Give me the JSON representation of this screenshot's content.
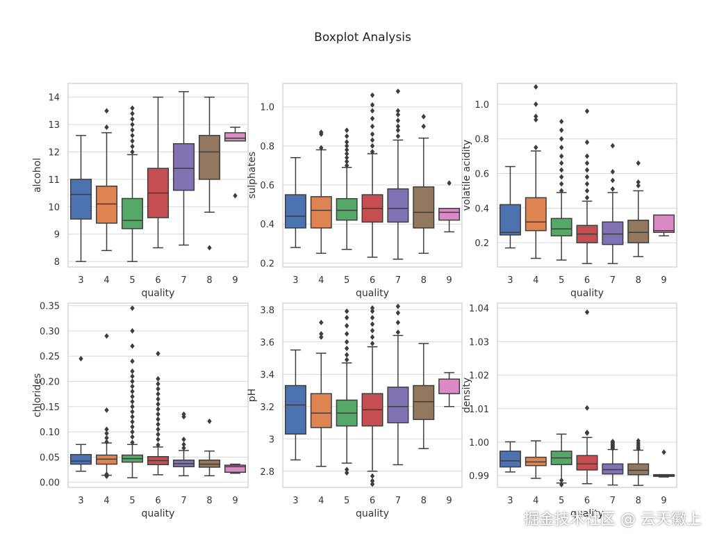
{
  "figure": {
    "title": "Boxplot Analysis"
  },
  "watermark": "掘金技术社区 @ 云天徽上",
  "colors": {
    "3": "#4c72b0",
    "4": "#dd8452",
    "5": "#55a868",
    "6": "#c44e52",
    "7": "#8172b3",
    "8": "#937860",
    "9": "#da8bc3",
    "line": "#3d3d3d",
    "grid": "#d9d9d9",
    "frame": "#cccccc"
  },
  "chart_data": [
    {
      "type": "box",
      "xlabel": "quality",
      "ylabel": "alcohol",
      "categories": [
        "3",
        "4",
        "5",
        "6",
        "7",
        "8",
        "9"
      ],
      "ylim": [
        7.8,
        14.5
      ],
      "yticks": [
        8,
        9,
        10,
        11,
        12,
        13,
        14
      ],
      "grid": true,
      "boxes": [
        {
          "q1": 9.55,
          "median": 10.45,
          "q3": 11.0,
          "whislo": 8.0,
          "whishi": 12.6,
          "fliers": []
        },
        {
          "q1": 9.4,
          "median": 10.1,
          "q3": 10.75,
          "whislo": 8.4,
          "whishi": 12.7,
          "fliers": [
            12.9,
            13.5
          ]
        },
        {
          "q1": 9.2,
          "median": 9.5,
          "q3": 10.3,
          "whislo": 8.0,
          "whishi": 11.9,
          "fliers": [
            12.0,
            12.2,
            12.4,
            12.6,
            12.8,
            13.0,
            13.2,
            13.4,
            13.6
          ]
        },
        {
          "q1": 9.6,
          "median": 10.5,
          "q3": 11.4,
          "whislo": 8.5,
          "whishi": 14.0,
          "fliers": []
        },
        {
          "q1": 10.6,
          "median": 11.4,
          "q3": 12.3,
          "whislo": 8.6,
          "whishi": 14.2,
          "fliers": []
        },
        {
          "q1": 11.0,
          "median": 12.0,
          "q3": 12.6,
          "whislo": 9.8,
          "whishi": 14.0,
          "fliers": [
            8.5
          ]
        },
        {
          "q1": 12.4,
          "median": 12.5,
          "q3": 12.7,
          "whislo": 12.4,
          "whishi": 12.9,
          "fliers": [
            10.4
          ]
        }
      ]
    },
    {
      "type": "box",
      "xlabel": "quality",
      "ylabel": "sulphates",
      "categories": [
        "3",
        "4",
        "5",
        "6",
        "7",
        "8",
        "9"
      ],
      "ylim": [
        0.18,
        1.12
      ],
      "yticks": [
        0.2,
        0.4,
        0.6,
        0.8,
        1.0
      ],
      "grid": true,
      "boxes": [
        {
          "q1": 0.38,
          "median": 0.44,
          "q3": 0.55,
          "whislo": 0.28,
          "whishi": 0.74,
          "fliers": []
        },
        {
          "q1": 0.38,
          "median": 0.47,
          "q3": 0.54,
          "whislo": 0.25,
          "whishi": 0.78,
          "fliers": [
            0.79,
            0.86,
            0.87
          ]
        },
        {
          "q1": 0.42,
          "median": 0.47,
          "q3": 0.53,
          "whislo": 0.27,
          "whishi": 0.69,
          "fliers": [
            0.7,
            0.72,
            0.74,
            0.76,
            0.78,
            0.8,
            0.82,
            0.85,
            0.88
          ]
        },
        {
          "q1": 0.41,
          "median": 0.48,
          "q3": 0.55,
          "whislo": 0.23,
          "whishi": 0.76,
          "fliers": [
            0.77,
            0.8,
            0.83,
            0.86,
            0.9,
            0.94,
            0.98,
            1.01,
            1.06
          ]
        },
        {
          "q1": 0.41,
          "median": 0.48,
          "q3": 0.58,
          "whislo": 0.22,
          "whishi": 0.83,
          "fliers": [
            0.85,
            0.88,
            0.9,
            0.93,
            0.96,
            0.98,
            1.08
          ]
        },
        {
          "q1": 0.38,
          "median": 0.46,
          "q3": 0.59,
          "whislo": 0.25,
          "whishi": 0.84,
          "fliers": [
            0.9,
            0.95
          ]
        },
        {
          "q1": 0.42,
          "median": 0.46,
          "q3": 0.48,
          "whislo": 0.36,
          "whishi": 0.48,
          "fliers": [
            0.61
          ]
        }
      ]
    },
    {
      "type": "box",
      "xlabel": "quality",
      "ylabel": "volatile acidity",
      "categories": [
        "3",
        "4",
        "5",
        "6",
        "7",
        "8",
        "9"
      ],
      "ylim": [
        0.06,
        1.12
      ],
      "yticks": [
        0.2,
        0.4,
        0.6,
        0.8,
        1.0
      ],
      "grid": true,
      "boxes": [
        {
          "q1": 0.245,
          "median": 0.26,
          "q3": 0.42,
          "whislo": 0.17,
          "whishi": 0.64,
          "fliers": []
        },
        {
          "q1": 0.27,
          "median": 0.32,
          "q3": 0.46,
          "whislo": 0.11,
          "whishi": 0.73,
          "fliers": [
            0.75,
            0.91,
            0.93,
            1.0,
            1.1
          ]
        },
        {
          "q1": 0.24,
          "median": 0.28,
          "q3": 0.34,
          "whislo": 0.1,
          "whishi": 0.49,
          "fliers": [
            0.5,
            0.54,
            0.58,
            0.62,
            0.66,
            0.7,
            0.75,
            0.8,
            0.85,
            0.9
          ]
        },
        {
          "q1": 0.2,
          "median": 0.25,
          "q3": 0.3,
          "whislo": 0.08,
          "whishi": 0.44,
          "fliers": [
            0.46,
            0.5,
            0.54,
            0.58,
            0.62,
            0.66,
            0.7,
            0.78,
            0.96
          ]
        },
        {
          "q1": 0.19,
          "median": 0.25,
          "q3": 0.32,
          "whislo": 0.08,
          "whishi": 0.49,
          "fliers": [
            0.51,
            0.56,
            0.61,
            0.76
          ]
        },
        {
          "q1": 0.2,
          "median": 0.26,
          "q3": 0.33,
          "whislo": 0.12,
          "whishi": 0.5,
          "fliers": [
            0.53,
            0.55,
            0.66
          ]
        },
        {
          "q1": 0.26,
          "median": 0.27,
          "q3": 0.36,
          "whislo": 0.24,
          "whishi": 0.36,
          "fliers": []
        }
      ]
    },
    {
      "type": "box",
      "xlabel": "quality",
      "ylabel": "chlorides",
      "categories": [
        "3",
        "4",
        "5",
        "6",
        "7",
        "8",
        "9"
      ],
      "ylim": [
        -0.01,
        0.355
      ],
      "yticks": [
        0.0,
        0.05,
        0.1,
        0.15,
        0.2,
        0.25,
        0.3,
        0.35
      ],
      "grid": true,
      "boxes": [
        {
          "q1": 0.036,
          "median": 0.042,
          "q3": 0.055,
          "whislo": 0.022,
          "whishi": 0.075,
          "fliers": [
            0.245
          ]
        },
        {
          "q1": 0.036,
          "median": 0.046,
          "q3": 0.054,
          "whislo": 0.014,
          "whishi": 0.078,
          "fliers": [
            0.012,
            0.016,
            0.08,
            0.088,
            0.097,
            0.105,
            0.143,
            0.29
          ]
        },
        {
          "q1": 0.04,
          "median": 0.047,
          "q3": 0.054,
          "whislo": 0.009,
          "whishi": 0.075,
          "fliers": [
            0.079,
            0.09,
            0.1,
            0.11,
            0.12,
            0.13,
            0.14,
            0.15,
            0.16,
            0.17,
            0.18,
            0.19,
            0.2,
            0.21,
            0.22,
            0.24,
            0.27,
            0.3,
            0.345
          ]
        },
        {
          "q1": 0.035,
          "median": 0.043,
          "q3": 0.051,
          "whislo": 0.015,
          "whishi": 0.07,
          "fliers": [
            0.074,
            0.085,
            0.095,
            0.105,
            0.115,
            0.125,
            0.135,
            0.145,
            0.155,
            0.165,
            0.175,
            0.185,
            0.195,
            0.205,
            0.255
          ]
        },
        {
          "q1": 0.031,
          "median": 0.037,
          "q3": 0.044,
          "whislo": 0.013,
          "whishi": 0.063,
          "fliers": [
            0.068,
            0.075,
            0.085,
            0.13,
            0.135
          ]
        },
        {
          "q1": 0.03,
          "median": 0.036,
          "q3": 0.044,
          "whislo": 0.013,
          "whishi": 0.062,
          "fliers": [
            0.121
          ]
        },
        {
          "q1": 0.02,
          "median": 0.031,
          "q3": 0.034,
          "whislo": 0.018,
          "whishi": 0.036,
          "fliers": []
        }
      ]
    },
    {
      "type": "box",
      "xlabel": "quality",
      "ylabel": "pH",
      "categories": [
        "3",
        "4",
        "5",
        "6",
        "7",
        "8",
        "9"
      ],
      "ylim": [
        2.7,
        3.84
      ],
      "yticks": [
        2.8,
        3.0,
        3.2,
        3.4,
        3.6,
        3.8
      ],
      "grid": true,
      "boxes": [
        {
          "q1": 3.03,
          "median": 3.21,
          "q3": 3.33,
          "whislo": 2.87,
          "whishi": 3.55,
          "fliers": []
        },
        {
          "q1": 3.07,
          "median": 3.16,
          "q3": 3.28,
          "whislo": 2.83,
          "whishi": 3.53,
          "fliers": [
            3.63,
            3.65,
            3.72
          ]
        },
        {
          "q1": 3.08,
          "median": 3.16,
          "q3": 3.24,
          "whislo": 2.85,
          "whishi": 3.47,
          "fliers": [
            2.79,
            2.81,
            3.49,
            3.52,
            3.56,
            3.6,
            3.65,
            3.7,
            3.75,
            3.79
          ]
        },
        {
          "q1": 3.08,
          "median": 3.18,
          "q3": 3.28,
          "whislo": 2.8,
          "whishi": 3.57,
          "fliers": [
            2.72,
            2.74,
            2.77,
            3.59,
            3.63,
            3.67,
            3.71,
            3.75,
            3.79,
            3.81
          ]
        },
        {
          "q1": 3.1,
          "median": 3.2,
          "q3": 3.32,
          "whislo": 2.84,
          "whishi": 3.64,
          "fliers": [
            3.66,
            3.72,
            3.78,
            3.82
          ]
        },
        {
          "q1": 3.12,
          "median": 3.23,
          "q3": 3.33,
          "whislo": 2.94,
          "whishi": 3.59,
          "fliers": []
        },
        {
          "q1": 3.28,
          "median": 3.37,
          "q3": 3.37,
          "whislo": 3.2,
          "whishi": 3.41,
          "fliers": []
        }
      ]
    },
    {
      "type": "box",
      "xlabel": "quality",
      "ylabel": "density",
      "categories": [
        "3",
        "4",
        "5",
        "6",
        "7",
        "8",
        "9"
      ],
      "ylim": [
        0.9865,
        1.0415
      ],
      "yticks": [
        0.99,
        1.0,
        1.01,
        1.02,
        1.03,
        1.04
      ],
      "grid": true,
      "boxes": [
        {
          "q1": 0.9926,
          "median": 0.9944,
          "q3": 0.9973,
          "whislo": 0.9911,
          "whishi": 1.0001,
          "fliers": []
        },
        {
          "q1": 0.993,
          "median": 0.9941,
          "q3": 0.9955,
          "whislo": 0.9892,
          "whishi": 1.0004,
          "fliers": []
        },
        {
          "q1": 0.9933,
          "median": 0.9953,
          "q3": 0.9973,
          "whislo": 0.9878,
          "whishi": 1.0024,
          "fliers": [
            0.9873,
            0.9886
          ]
        },
        {
          "q1": 0.9917,
          "median": 0.9935,
          "q3": 0.996,
          "whislo": 0.9876,
          "whishi": 1.0014,
          "fliers": [
            1.0027,
            1.0029,
            1.0102,
            1.0388
          ]
        },
        {
          "q1": 0.9905,
          "median": 0.9918,
          "q3": 0.9935,
          "whislo": 0.9872,
          "whishi": 0.9978,
          "fliers": [
            0.9981,
            0.9984,
            0.9987,
            0.999,
            0.9993,
            0.9996,
            0.9999,
            1.0002
          ]
        },
        {
          "q1": 0.9903,
          "median": 0.9916,
          "q3": 0.9935,
          "whislo": 0.9871,
          "whishi": 0.9976,
          "fliers": [
            0.998,
            0.9985,
            0.9991,
            0.9997,
            1.0004
          ]
        },
        {
          "q1": 0.9898,
          "median": 0.99,
          "q3": 0.9903,
          "whislo": 0.9896,
          "whishi": 0.9903,
          "fliers": [
            0.997
          ]
        }
      ]
    }
  ]
}
